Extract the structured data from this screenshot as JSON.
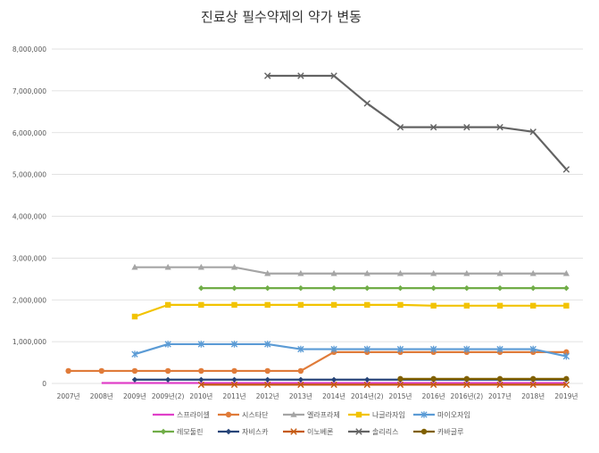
{
  "chart_data": {
    "type": "line",
    "title": "진료상 필수약제의 약가 변동",
    "categories": [
      "2007년",
      "2008년",
      "2009년",
      "2009년(2)",
      "2010년",
      "2011년",
      "2012년",
      "2013년",
      "2014년",
      "2014년(2)",
      "2015년",
      "2016년",
      "2016년(2)",
      "2017년",
      "2018년",
      "2019년"
    ],
    "ylim": [
      0,
      8000000
    ],
    "yticks": [
      0,
      1000000,
      2000000,
      3000000,
      4000000,
      5000000,
      6000000,
      7000000,
      8000000
    ],
    "ytick_labels": [
      "0",
      "1,000,000",
      "2,000,000",
      "3,000,000",
      "4,000,000",
      "5,000,000",
      "6,000,000",
      "7,000,000",
      "8,000,000"
    ],
    "grid": true,
    "legend_position": "bottom",
    "series": [
      {
        "name": "스프라이셀",
        "color": "#e040c8",
        "marker": "none",
        "values": [
          null,
          10000,
          10000,
          10000,
          10000,
          10000,
          10000,
          10000,
          10000,
          10000,
          10000,
          10000,
          10000,
          10000,
          10000,
          10000
        ]
      },
      {
        "name": "시스타단",
        "color": "#e07b39",
        "marker": "circle",
        "values": [
          300000,
          300000,
          300000,
          300000,
          300000,
          300000,
          300000,
          300000,
          750000,
          750000,
          750000,
          750000,
          750000,
          750000,
          750000,
          750000
        ]
      },
      {
        "name": "엘라프라제",
        "color": "#a5a5a5",
        "marker": "triangle",
        "values": [
          null,
          null,
          2780000,
          2780000,
          2780000,
          2780000,
          2630000,
          2630000,
          2630000,
          2630000,
          2630000,
          2630000,
          2630000,
          2630000,
          2630000,
          2630000
        ]
      },
      {
        "name": "나글라자임",
        "color": "#f2c300",
        "marker": "square",
        "values": [
          null,
          null,
          1600000,
          1880000,
          1880000,
          1880000,
          1880000,
          1880000,
          1880000,
          1880000,
          1880000,
          1860000,
          1860000,
          1860000,
          1860000,
          1860000
        ]
      },
      {
        "name": "마이오자임",
        "color": "#5b9bd5",
        "marker": "star",
        "values": [
          null,
          null,
          700000,
          940000,
          940000,
          940000,
          940000,
          820000,
          820000,
          820000,
          820000,
          820000,
          820000,
          820000,
          820000,
          650000
        ]
      },
      {
        "name": "레모둘린",
        "color": "#70ad47",
        "marker": "diamond",
        "values": [
          null,
          null,
          null,
          null,
          2280000,
          2280000,
          2280000,
          2280000,
          2280000,
          2280000,
          2280000,
          2280000,
          2280000,
          2280000,
          2280000,
          2280000
        ]
      },
      {
        "name": "자비스카",
        "color": "#264478",
        "marker": "diamond",
        "values": [
          null,
          null,
          90000,
          90000,
          90000,
          90000,
          90000,
          90000,
          90000,
          90000,
          90000,
          90000,
          90000,
          90000,
          90000,
          90000
        ]
      },
      {
        "name": "이노베론",
        "color": "#c55a11",
        "marker": "x",
        "values": [
          null,
          null,
          null,
          null,
          -30000,
          -30000,
          -30000,
          -30000,
          -30000,
          -30000,
          -30000,
          -30000,
          -30000,
          -30000,
          -30000,
          -30000
        ]
      },
      {
        "name": "솔리리스",
        "color": "#636363",
        "marker": "x",
        "values": [
          null,
          null,
          null,
          null,
          null,
          null,
          7360000,
          7360000,
          7360000,
          6700000,
          6130000,
          6130000,
          6130000,
          6130000,
          6020000,
          5120000
        ]
      },
      {
        "name": "카바글루",
        "color": "#806000",
        "marker": "circle",
        "values": [
          null,
          null,
          null,
          null,
          null,
          null,
          null,
          null,
          null,
          null,
          110000,
          110000,
          110000,
          110000,
          110000,
          110000
        ]
      }
    ]
  }
}
